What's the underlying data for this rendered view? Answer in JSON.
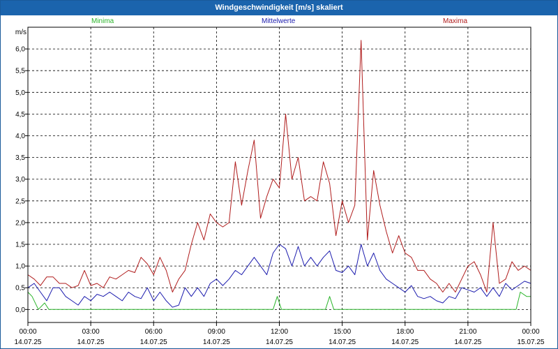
{
  "title": "Windgeschwindigkeit [m/s] skaliert",
  "legend": [
    {
      "name": "Minima",
      "color": "#2bb52b"
    },
    {
      "name": "Mittelwerte",
      "color": "#1c1cae"
    },
    {
      "name": "Maxima",
      "color": "#b01c1c"
    }
  ],
  "chart_data": {
    "type": "line",
    "title": "Windgeschwindigkeit [m/s] skaliert",
    "ylabel": "m/s",
    "ylim": [
      -0.3,
      6.5
    ],
    "yticks": [
      "0,0",
      "0,5",
      "1,0",
      "1,5",
      "2,0",
      "2,5",
      "3,0",
      "3,5",
      "4,0",
      "4,5",
      "5,0",
      "5,5",
      "6,0"
    ],
    "xlim": [
      0,
      24
    ],
    "xticks": [
      {
        "h": 0,
        "time": "00:00",
        "date": "14.07.25"
      },
      {
        "h": 3,
        "time": "03:00",
        "date": "14.07.25"
      },
      {
        "h": 6,
        "time": "06:00",
        "date": "14.07.25"
      },
      {
        "h": 9,
        "time": "09:00",
        "date": "14.07.25"
      },
      {
        "h": 12,
        "time": "12:00",
        "date": "14.07.25"
      },
      {
        "h": 15,
        "time": "15:00",
        "date": "14.07.25"
      },
      {
        "h": 18,
        "time": "18:00",
        "date": "14.07.25"
      },
      {
        "h": 21,
        "time": "21:00",
        "date": "14.07.25"
      },
      {
        "h": 24,
        "time": "00:00",
        "date": "15.07.25"
      }
    ],
    "grid": true,
    "series": [
      {
        "name": "Minima",
        "color": "#2bb52b",
        "points": [
          [
            0,
            0.4
          ],
          [
            0.2,
            0.3
          ],
          [
            0.5,
            0
          ],
          [
            0.8,
            0.15
          ],
          [
            1.0,
            0
          ],
          [
            11.7,
            0
          ],
          [
            11.9,
            0.3
          ],
          [
            12.1,
            0
          ],
          [
            14.2,
            0
          ],
          [
            14.4,
            0.3
          ],
          [
            14.6,
            0
          ],
          [
            23.3,
            0
          ],
          [
            23.5,
            0.4
          ],
          [
            23.8,
            0.3
          ],
          [
            24,
            0.3
          ]
        ]
      },
      {
        "name": "Mittelwerte",
        "color": "#1c1cae",
        "points": [
          [
            0,
            0.5
          ],
          [
            0.3,
            0.6
          ],
          [
            0.6,
            0.4
          ],
          [
            0.9,
            0.2
          ],
          [
            1.2,
            0.5
          ],
          [
            1.5,
            0.5
          ],
          [
            1.8,
            0.3
          ],
          [
            2.1,
            0.2
          ],
          [
            2.4,
            0.1
          ],
          [
            2.7,
            0.3
          ],
          [
            3.0,
            0.2
          ],
          [
            3.3,
            0.35
          ],
          [
            3.6,
            0.3
          ],
          [
            3.9,
            0.4
          ],
          [
            4.2,
            0.3
          ],
          [
            4.5,
            0.2
          ],
          [
            4.8,
            0.4
          ],
          [
            5.1,
            0.3
          ],
          [
            5.4,
            0.25
          ],
          [
            5.7,
            0.5
          ],
          [
            6.0,
            0.2
          ],
          [
            6.3,
            0.4
          ],
          [
            6.6,
            0.2
          ],
          [
            6.9,
            0.05
          ],
          [
            7.2,
            0.1
          ],
          [
            7.5,
            0.5
          ],
          [
            7.8,
            0.3
          ],
          [
            8.1,
            0.5
          ],
          [
            8.4,
            0.3
          ],
          [
            8.7,
            0.6
          ],
          [
            9.0,
            0.7
          ],
          [
            9.3,
            0.55
          ],
          [
            9.6,
            0.7
          ],
          [
            9.9,
            0.9
          ],
          [
            10.2,
            0.8
          ],
          [
            10.5,
            1.0
          ],
          [
            10.8,
            1.2
          ],
          [
            11.1,
            1.0
          ],
          [
            11.4,
            0.8
          ],
          [
            11.7,
            1.3
          ],
          [
            12.0,
            1.5
          ],
          [
            12.3,
            1.4
          ],
          [
            12.6,
            1.0
          ],
          [
            12.9,
            1.45
          ],
          [
            13.2,
            1.0
          ],
          [
            13.5,
            1.2
          ],
          [
            13.8,
            1.0
          ],
          [
            14.1,
            1.2
          ],
          [
            14.4,
            1.35
          ],
          [
            14.7,
            0.9
          ],
          [
            15.0,
            0.85
          ],
          [
            15.3,
            1.0
          ],
          [
            15.6,
            0.8
          ],
          [
            15.9,
            1.5
          ],
          [
            16.2,
            1.0
          ],
          [
            16.5,
            1.3
          ],
          [
            16.8,
            0.9
          ],
          [
            17.1,
            0.7
          ],
          [
            17.4,
            0.6
          ],
          [
            17.7,
            0.5
          ],
          [
            18.0,
            0.4
          ],
          [
            18.3,
            0.55
          ],
          [
            18.6,
            0.3
          ],
          [
            18.9,
            0.25
          ],
          [
            19.2,
            0.3
          ],
          [
            19.5,
            0.2
          ],
          [
            19.8,
            0.15
          ],
          [
            20.1,
            0.3
          ],
          [
            20.4,
            0.25
          ],
          [
            20.7,
            0.5
          ],
          [
            21.0,
            0.45
          ],
          [
            21.3,
            0.4
          ],
          [
            21.6,
            0.5
          ],
          [
            21.9,
            0.3
          ],
          [
            22.2,
            0.5
          ],
          [
            22.5,
            0.3
          ],
          [
            22.8,
            0.6
          ],
          [
            23.1,
            0.45
          ],
          [
            23.4,
            0.55
          ],
          [
            23.7,
            0.65
          ],
          [
            24.0,
            0.6
          ]
        ]
      },
      {
        "name": "Maxima",
        "color": "#b01c1c",
        "points": [
          [
            0,
            0.8
          ],
          [
            0.3,
            0.7
          ],
          [
            0.6,
            0.55
          ],
          [
            0.9,
            0.75
          ],
          [
            1.2,
            0.75
          ],
          [
            1.5,
            0.6
          ],
          [
            1.8,
            0.6
          ],
          [
            2.1,
            0.5
          ],
          [
            2.4,
            0.55
          ],
          [
            2.7,
            0.9
          ],
          [
            3.0,
            0.55
          ],
          [
            3.3,
            0.6
          ],
          [
            3.6,
            0.5
          ],
          [
            3.9,
            0.75
          ],
          [
            4.2,
            0.7
          ],
          [
            4.5,
            0.8
          ],
          [
            4.8,
            0.9
          ],
          [
            5.1,
            0.85
          ],
          [
            5.4,
            1.2
          ],
          [
            5.7,
            1.05
          ],
          [
            6.0,
            0.8
          ],
          [
            6.3,
            1.2
          ],
          [
            6.6,
            0.9
          ],
          [
            6.9,
            0.4
          ],
          [
            7.2,
            0.7
          ],
          [
            7.5,
            0.9
          ],
          [
            7.8,
            1.5
          ],
          [
            8.1,
            2.0
          ],
          [
            8.4,
            1.6
          ],
          [
            8.7,
            2.2
          ],
          [
            9.0,
            2.0
          ],
          [
            9.3,
            1.9
          ],
          [
            9.6,
            2.0
          ],
          [
            9.9,
            3.4
          ],
          [
            10.2,
            2.4
          ],
          [
            10.5,
            3.2
          ],
          [
            10.8,
            3.9
          ],
          [
            11.1,
            2.1
          ],
          [
            11.4,
            2.6
          ],
          [
            11.7,
            3.0
          ],
          [
            12.0,
            2.8
          ],
          [
            12.3,
            4.5
          ],
          [
            12.6,
            3.0
          ],
          [
            12.9,
            3.5
          ],
          [
            13.2,
            2.5
          ],
          [
            13.5,
            2.6
          ],
          [
            13.8,
            2.5
          ],
          [
            14.1,
            3.4
          ],
          [
            14.4,
            2.9
          ],
          [
            14.7,
            1.7
          ],
          [
            15.0,
            2.5
          ],
          [
            15.3,
            2.0
          ],
          [
            15.6,
            2.4
          ],
          [
            15.9,
            6.2
          ],
          [
            16.2,
            1.6
          ],
          [
            16.5,
            3.2
          ],
          [
            16.8,
            2.4
          ],
          [
            17.1,
            1.8
          ],
          [
            17.4,
            1.3
          ],
          [
            17.7,
            1.7
          ],
          [
            18.0,
            1.3
          ],
          [
            18.3,
            1.2
          ],
          [
            18.6,
            0.9
          ],
          [
            18.9,
            0.9
          ],
          [
            19.2,
            0.7
          ],
          [
            19.5,
            0.6
          ],
          [
            19.8,
            0.4
          ],
          [
            20.1,
            0.6
          ],
          [
            20.4,
            0.4
          ],
          [
            20.7,
            0.7
          ],
          [
            21.0,
            1.0
          ],
          [
            21.3,
            1.1
          ],
          [
            21.6,
            0.8
          ],
          [
            21.9,
            0.4
          ],
          [
            22.2,
            2.0
          ],
          [
            22.5,
            0.6
          ],
          [
            22.8,
            0.7
          ],
          [
            23.1,
            1.1
          ],
          [
            23.4,
            0.9
          ],
          [
            23.7,
            1.0
          ],
          [
            24.0,
            0.9
          ]
        ]
      }
    ]
  }
}
